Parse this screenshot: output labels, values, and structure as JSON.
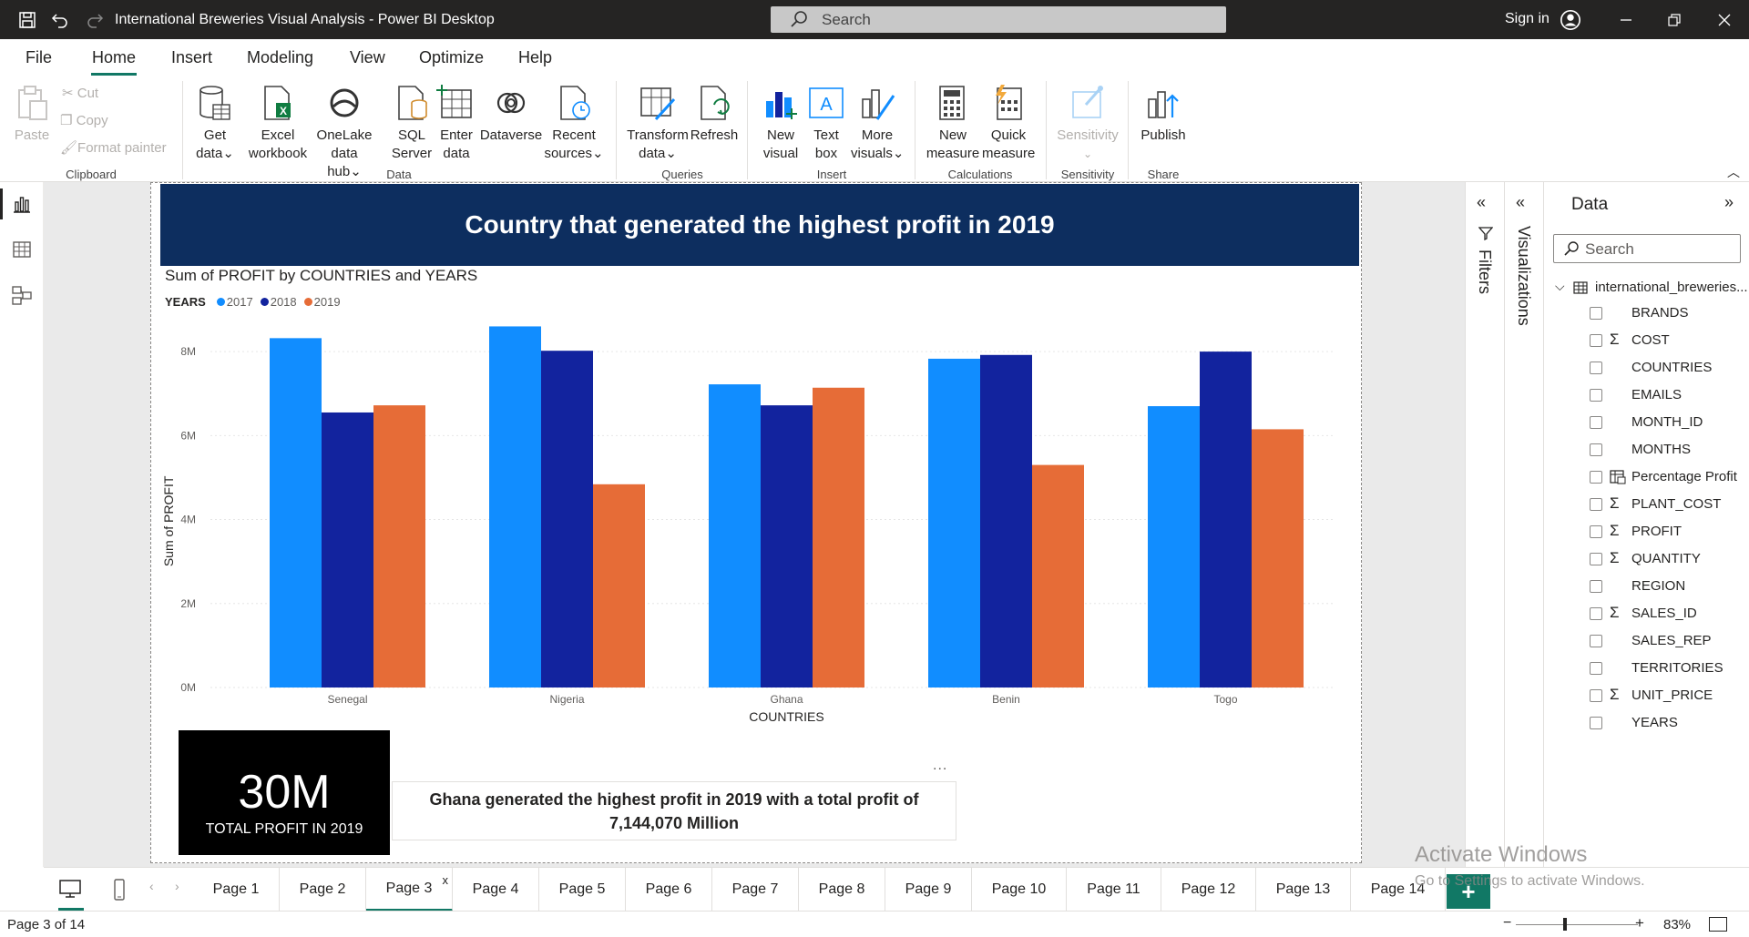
{
  "window": {
    "title": "International Breweries Visual Analysis - Power BI Desktop",
    "search_placeholder": "Search",
    "sign_in": "Sign in"
  },
  "menu": {
    "tabs": [
      "File",
      "Home",
      "Insert",
      "Modeling",
      "View",
      "Optimize",
      "Help"
    ],
    "active": "Home"
  },
  "ribbon": {
    "clipboard": {
      "paste": "Paste",
      "cut": "Cut",
      "copy": "Copy",
      "format_painter": "Format painter",
      "label": "Clipboard"
    },
    "data": {
      "get_data": [
        "Get",
        "data"
      ],
      "excel": [
        "Excel",
        "workbook"
      ],
      "onelake": [
        "OneLake data",
        "hub"
      ],
      "sql": [
        "SQL",
        "Server"
      ],
      "enter": [
        "Enter",
        "data"
      ],
      "dataverse": [
        "Dataverse",
        ""
      ],
      "recent": [
        "Recent",
        "sources"
      ],
      "label": "Data"
    },
    "queries": {
      "transform": [
        "Transform",
        "data"
      ],
      "refresh": "Refresh",
      "label": "Queries"
    },
    "insert": {
      "new_visual": [
        "New",
        "visual"
      ],
      "text_box": [
        "Text",
        "box"
      ],
      "more_visuals": [
        "More",
        "visuals"
      ],
      "label": "Insert"
    },
    "calculations": {
      "new_measure": [
        "New",
        "measure"
      ],
      "quick_measure": [
        "Quick",
        "measure"
      ],
      "label": "Calculations"
    },
    "sensitivity": {
      "button": "Sensitivity",
      "label": "Sensitivity"
    },
    "share": {
      "publish": "Publish",
      "label": "Share"
    }
  },
  "report": {
    "banner": "Country that generated the highest profit in 2019",
    "kpi_value": "30M",
    "kpi_label": "TOTAL PROFIT IN 2019",
    "textbox": "Ghana generated the highest profit in 2019 with a total profit of 7,144,070 Million",
    "textbox_more": "..."
  },
  "chart_data": {
    "type": "bar",
    "title": "Sum of PROFIT by COUNTRIES and YEARS",
    "legend_title": "YEARS",
    "legend_position": "top-left",
    "xlabel": "COUNTRIES",
    "ylabel": "Sum of PROFIT",
    "categories": [
      "Senegal",
      "Nigeria",
      "Ghana",
      "Benin",
      "Togo"
    ],
    "series": [
      {
        "name": "2017",
        "color": "#118dff",
        "values": [
          8.32,
          8.6,
          7.22,
          7.83,
          6.7
        ]
      },
      {
        "name": "2018",
        "color": "#12239e",
        "values": [
          6.55,
          8.02,
          6.72,
          7.92,
          8.0
        ]
      },
      {
        "name": "2019",
        "color": "#e66c37",
        "values": [
          6.72,
          4.84,
          7.14,
          5.3,
          6.15
        ]
      }
    ],
    "yticks": [
      "0M",
      "2M",
      "4M",
      "6M",
      "8M"
    ],
    "ylim": [
      0,
      9
    ],
    "unit": "M",
    "grid": true
  },
  "panes": {
    "filters": "Filters",
    "visualizations": "Visualizations",
    "data": {
      "title": "Data",
      "search_placeholder": "Search",
      "table": "international_breweries...",
      "fields": [
        {
          "name": "BRANDS",
          "icon": ""
        },
        {
          "name": "COST",
          "icon": "sigma"
        },
        {
          "name": "COUNTRIES",
          "icon": ""
        },
        {
          "name": "EMAILS",
          "icon": ""
        },
        {
          "name": "MONTH_ID",
          "icon": ""
        },
        {
          "name": "MONTHS",
          "icon": ""
        },
        {
          "name": "Percentage Profit",
          "icon": "calc-table"
        },
        {
          "name": "PLANT_COST",
          "icon": "sigma"
        },
        {
          "name": "PROFIT",
          "icon": "sigma"
        },
        {
          "name": "QUANTITY",
          "icon": "sigma"
        },
        {
          "name": "REGION",
          "icon": ""
        },
        {
          "name": "SALES_ID",
          "icon": "sigma"
        },
        {
          "name": "SALES_REP",
          "icon": ""
        },
        {
          "name": "TERRITORIES",
          "icon": ""
        },
        {
          "name": "UNIT_PRICE",
          "icon": "sigma"
        },
        {
          "name": "YEARS",
          "icon": ""
        }
      ]
    }
  },
  "pages": {
    "tabs": [
      "Page 1",
      "Page 2",
      "Page 3",
      "Page 4",
      "Page 5",
      "Page 6",
      "Page 7",
      "Page 8",
      "Page 9",
      "Page 10",
      "Page 11",
      "Page 12",
      "Page 13",
      "Page 14"
    ],
    "active_index": 2,
    "close_glyph": "x",
    "add_glyph": "+"
  },
  "status": {
    "page_count": "Page 3 of 14",
    "zoom": "83%",
    "zoom_level": 0.83
  },
  "watermark": {
    "line1": "Activate Windows",
    "line2": "Go to Settings to activate Windows."
  }
}
